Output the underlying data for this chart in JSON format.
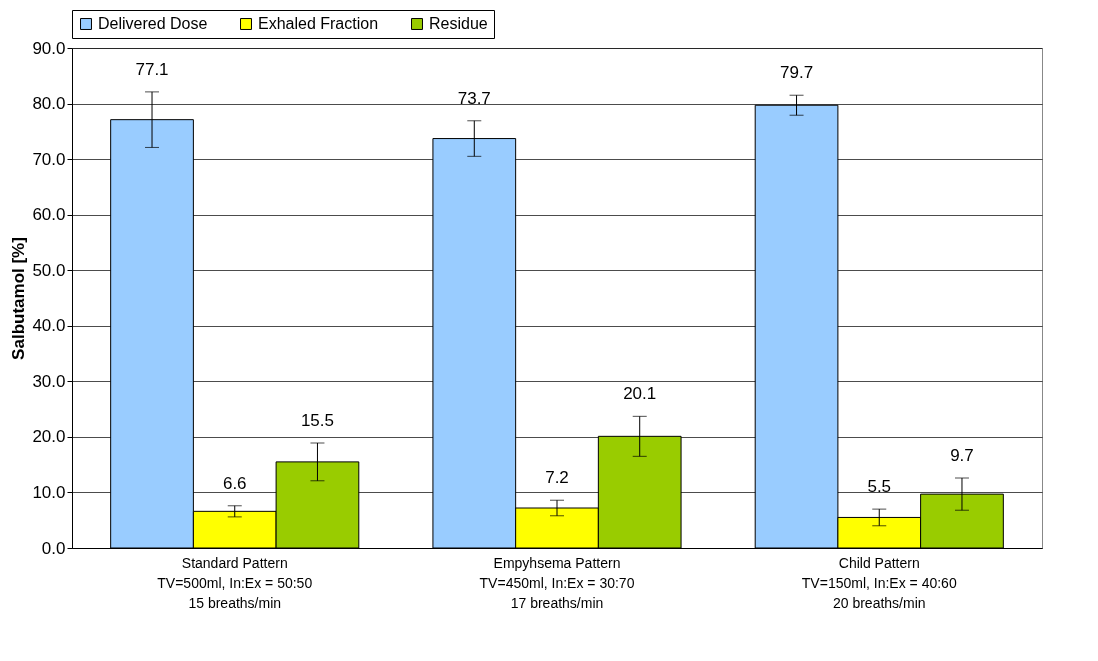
{
  "chart_data": {
    "type": "bar",
    "ylabel": "Salbutamol [%]",
    "categories": [
      "Standard Pattern\nTV=500ml,  In:Ex = 50:50\n15 breaths/min",
      "Empyhsema Pattern\nTV=450ml,  In:Ex = 30:70\n17 breaths/min",
      "Child Pattern\nTV=150ml,  In:Ex = 40:60\n20 breaths/min"
    ],
    "series": [
      {
        "name": "Delivered Dose",
        "color": "#99ccff",
        "values": [
          77.1,
          73.7,
          79.7
        ],
        "errors": [
          5.0,
          3.2,
          1.8
        ]
      },
      {
        "name": "Exhaled Fraction",
        "color": "#ffff00",
        "values": [
          6.6,
          7.2,
          5.5
        ],
        "errors": [
          1.0,
          1.4,
          1.5
        ]
      },
      {
        "name": "Residue",
        "color": "#99cc00",
        "values": [
          15.5,
          20.1,
          9.7
        ],
        "errors": [
          3.4,
          3.6,
          2.9
        ]
      }
    ],
    "ylim": [
      0,
      90
    ],
    "yticks": [
      {
        "value": 0,
        "label": "0.0"
      },
      {
        "value": 10,
        "label": "10.0"
      },
      {
        "value": 20,
        "label": "20.0"
      },
      {
        "value": 30,
        "label": "30.0"
      },
      {
        "value": 40,
        "label": "40.0"
      },
      {
        "value": 50,
        "label": "50.0"
      },
      {
        "value": 60,
        "label": "60.0"
      },
      {
        "value": 70,
        "label": "70.0"
      },
      {
        "value": 80,
        "label": "80.0"
      },
      {
        "value": 90,
        "label": "90.0"
      }
    ],
    "grid": "y",
    "legend": "top",
    "data_labels": true
  }
}
